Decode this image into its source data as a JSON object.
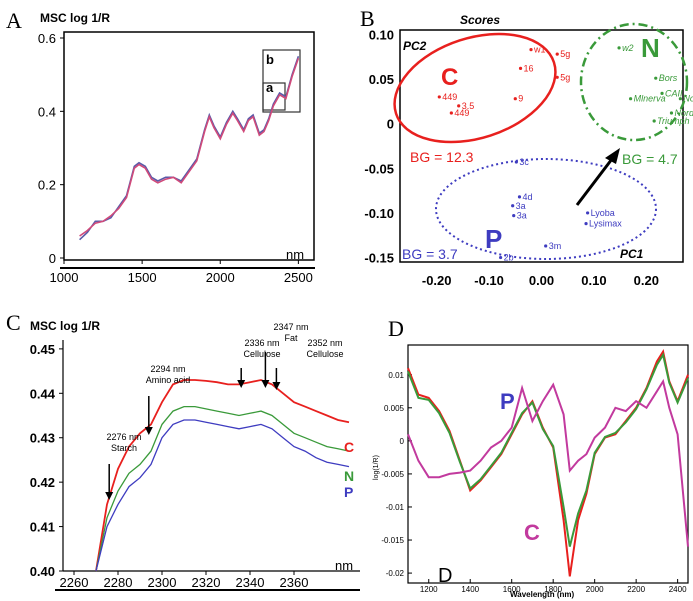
{
  "colors": {
    "red": "#e8201e",
    "green": "#3a9a3a",
    "blue": "#3e3cc0",
    "magenta": "#c23a9e",
    "grey": "#8a8aa0"
  },
  "chart_data": [
    {
      "id": "A",
      "panel_letter": "A",
      "type": "line",
      "title": "",
      "ylabel": "MSC log 1/R",
      "xlabel": "nm",
      "xlim": [
        1000,
        2600
      ],
      "ylim": [
        0,
        0.6
      ],
      "xticks": [
        "1000",
        "1500",
        "2000",
        "2500"
      ],
      "yticks": [
        "0",
        "0.2",
        "0.4",
        "0.6"
      ],
      "x": [
        1100,
        1150,
        1200,
        1250,
        1300,
        1350,
        1400,
        1450,
        1480,
        1520,
        1560,
        1600,
        1650,
        1700,
        1750,
        1800,
        1850,
        1900,
        1930,
        1960,
        2000,
        2040,
        2080,
        2110,
        2150,
        2180,
        2210,
        2250,
        2280,
        2310,
        2340,
        2380,
        2420,
        2460,
        2500
      ],
      "series": [
        {
          "values": [
            0.05,
            0.07,
            0.1,
            0.1,
            0.11,
            0.14,
            0.17,
            0.25,
            0.26,
            0.25,
            0.22,
            0.21,
            0.22,
            0.22,
            0.21,
            0.24,
            0.27,
            0.35,
            0.39,
            0.36,
            0.33,
            0.37,
            0.4,
            0.38,
            0.35,
            0.38,
            0.39,
            0.34,
            0.35,
            0.38,
            0.42,
            0.45,
            0.44,
            0.5,
            0.55
          ]
        },
        {
          "values": [
            0.06,
            0.075,
            0.095,
            0.1,
            0.115,
            0.135,
            0.165,
            0.245,
            0.255,
            0.245,
            0.215,
            0.205,
            0.215,
            0.22,
            0.205,
            0.235,
            0.265,
            0.345,
            0.385,
            0.355,
            0.325,
            0.365,
            0.395,
            0.375,
            0.345,
            0.375,
            0.385,
            0.335,
            0.345,
            0.375,
            0.415,
            0.445,
            0.435,
            0.495,
            0.545
          ]
        }
      ],
      "annotations": [
        "a",
        "b"
      ]
    },
    {
      "id": "B",
      "panel_letter": "B",
      "type": "scatter",
      "title": "Scores",
      "xlabel": "PC1",
      "ylabel": "PC2",
      "xlim": [
        -0.27,
        0.27
      ],
      "ylim": [
        -0.155,
        0.105
      ],
      "xticks": [
        "-0.20",
        "-0.10",
        "0.00",
        "0.10",
        "0.20"
      ],
      "yticks": [
        "0.10",
        "0.05",
        "0",
        "-0.05",
        "-0.10",
        "-0.15"
      ],
      "groups": [
        {
          "name": "C",
          "bg": "BG = 12.3",
          "points": [
            {
              "label": "w1",
              "x": -0.02,
              "y": 0.083
            },
            {
              "label": "5g",
              "x": 0.03,
              "y": 0.078
            },
            {
              "label": "16",
              "x": -0.04,
              "y": 0.062
            },
            {
              "label": "5g",
              "x": 0.03,
              "y": 0.052
            },
            {
              "label": "449",
              "x": -0.195,
              "y": 0.03
            },
            {
              "label": "9",
              "x": -0.05,
              "y": 0.028
            },
            {
              "label": "3.5",
              "x": -0.158,
              "y": 0.02
            },
            {
              "label": "449",
              "x": -0.172,
              "y": 0.012
            }
          ]
        },
        {
          "name": "N",
          "bg": "BG = 4.7",
          "points": [
            {
              "label": "w2",
              "x": 0.148,
              "y": 0.085
            },
            {
              "label": "Bors",
              "x": 0.218,
              "y": 0.051
            },
            {
              "label": "CAII",
              "x": 0.23,
              "y": 0.034
            },
            {
              "label": "Mlnerva",
              "x": 0.17,
              "y": 0.028
            },
            {
              "label": "Nordal",
              "x": 0.265,
              "y": 0.028
            },
            {
              "label": "Nordal",
              "x": 0.248,
              "y": 0.012
            },
            {
              "label": "Triumph",
              "x": 0.215,
              "y": 0.003
            }
          ]
        },
        {
          "name": "P",
          "bg": "BG = 3.7",
          "points": [
            {
              "label": "3c",
              "x": -0.048,
              "y": -0.043
            },
            {
              "label": "4d",
              "x": -0.042,
              "y": -0.082
            },
            {
              "label": "3a",
              "x": -0.055,
              "y": -0.092
            },
            {
              "label": "3a",
              "x": -0.053,
              "y": -0.103
            },
            {
              "label": "Lyoba",
              "x": 0.088,
              "y": -0.1
            },
            {
              "label": "Lysimax",
              "x": 0.085,
              "y": -0.112
            },
            {
              "label": "3m",
              "x": 0.008,
              "y": -0.137
            },
            {
              "label": "2b",
              "x": -0.078,
              "y": -0.15
            }
          ]
        }
      ]
    },
    {
      "id": "C",
      "panel_letter": "C",
      "type": "line",
      "title": "",
      "ylabel": "MSC log 1/R",
      "xlabel": "nm",
      "xlim": [
        2255,
        2390
      ],
      "ylim": [
        0.4,
        0.452
      ],
      "xticks": [
        "2260",
        "2280",
        "2300",
        "2320",
        "2340",
        "2360"
      ],
      "yticks": [
        "0.45",
        "0.44",
        "0.43",
        "0.42",
        "0.41",
        "0.40"
      ],
      "x": [
        2270,
        2275,
        2280,
        2285,
        2290,
        2295,
        2300,
        2305,
        2310,
        2315,
        2320,
        2325,
        2330,
        2335,
        2340,
        2345,
        2350,
        2355,
        2360,
        2365,
        2370,
        2375,
        2380,
        2385
      ],
      "series": [
        {
          "name": "C",
          "values": [
            0.4,
            0.415,
            0.423,
            0.428,
            0.431,
            0.433,
            0.438,
            0.442,
            0.443,
            0.443,
            0.4428,
            0.4425,
            0.442,
            0.442,
            0.4425,
            0.443,
            0.442,
            0.44,
            0.438,
            0.437,
            0.436,
            0.435,
            0.434,
            0.4335
          ]
        },
        {
          "name": "N",
          "values": [
            0.4,
            0.412,
            0.418,
            0.422,
            0.424,
            0.427,
            0.433,
            0.436,
            0.437,
            0.437,
            0.4365,
            0.436,
            0.4355,
            0.435,
            0.4355,
            0.436,
            0.435,
            0.433,
            0.431,
            0.43,
            0.429,
            0.428,
            0.4275,
            0.427
          ]
        },
        {
          "name": "P",
          "values": [
            0.4,
            0.41,
            0.415,
            0.419,
            0.421,
            0.424,
            0.43,
            0.433,
            0.434,
            0.434,
            0.4335,
            0.433,
            0.4325,
            0.432,
            0.4325,
            0.433,
            0.432,
            0.43,
            0.428,
            0.427,
            0.4255,
            0.4245,
            0.424,
            0.4235
          ]
        }
      ],
      "annotations": [
        {
          "text": [
            "2276 nm",
            "Starch"
          ],
          "x": 2276
        },
        {
          "text": [
            "2294 nm",
            "Amino acid"
          ],
          "x": 2294
        },
        {
          "text": [
            "2336 nm",
            "Cellulose"
          ],
          "x": 2336
        },
        {
          "text": [
            "2347 nm",
            "Fat"
          ],
          "x": 2347
        },
        {
          "text": [
            "2352 nm",
            "Cellulose"
          ],
          "x": 2352
        }
      ]
    },
    {
      "id": "D",
      "panel_letter": "D",
      "type": "line",
      "title": "",
      "ylabel": "log(1/R)",
      "xlabel": "Wavelength (nm)",
      "xlim": [
        1100,
        2450
      ],
      "ylim": [
        -0.0215,
        0.0145
      ],
      "xticks": [
        "1200",
        "1400",
        "1600",
        "1800",
        "2000",
        "2200",
        "2400"
      ],
      "yticks": [
        "0.01",
        "0.005",
        "0",
        "-0.005",
        "-0.01",
        "-0.015",
        "-0.02"
      ],
      "x": [
        1100,
        1150,
        1200,
        1250,
        1300,
        1350,
        1400,
        1450,
        1500,
        1550,
        1600,
        1650,
        1700,
        1750,
        1800,
        1850,
        1880,
        1920,
        1960,
        2000,
        2050,
        2100,
        2150,
        2200,
        2250,
        2300,
        2330,
        2360,
        2400,
        2450
      ],
      "series": [
        {
          "name": "C",
          "values": [
            0.011,
            0.007,
            0.0065,
            0.0045,
            0.0015,
            -0.003,
            -0.0075,
            -0.006,
            -0.004,
            -0.002,
            0.001,
            0.004,
            0.006,
            0.002,
            -0.001,
            -0.012,
            -0.0205,
            -0.012,
            -0.008,
            -0.002,
            0.0005,
            0.001,
            0.003,
            0.005,
            0.008,
            0.012,
            0.0135,
            0.009,
            0.006,
            0.01
          ]
        },
        {
          "name": "N",
          "values": [
            0.0105,
            0.0065,
            0.0062,
            0.0042,
            0.0012,
            -0.0032,
            -0.0072,
            -0.0058,
            -0.0038,
            -0.0018,
            0.0012,
            0.0042,
            0.0058,
            0.0018,
            -0.0008,
            -0.01,
            -0.016,
            -0.011,
            -0.0075,
            -0.0018,
            0.0006,
            0.0012,
            0.0028,
            0.0048,
            0.0078,
            0.0115,
            0.013,
            0.0088,
            0.0058,
            0.0095
          ]
        },
        {
          "name": "P",
          "values": [
            0.001,
            -0.003,
            -0.0055,
            -0.0055,
            -0.005,
            -0.0048,
            -0.0045,
            -0.003,
            -0.001,
            0.0,
            0.002,
            0.008,
            0.003,
            0.006,
            0.0085,
            0.004,
            -0.0045,
            -0.003,
            -0.002,
            0.0005,
            0.002,
            0.005,
            0.0045,
            0.006,
            0.005,
            0.0075,
            0.009,
            0.005,
            0.001,
            -0.016
          ]
        }
      ],
      "labels": [
        {
          "text": "P",
          "series": "P"
        },
        {
          "text": "C",
          "series": "C"
        },
        {
          "text": "D",
          "series": ""
        }
      ]
    }
  ]
}
